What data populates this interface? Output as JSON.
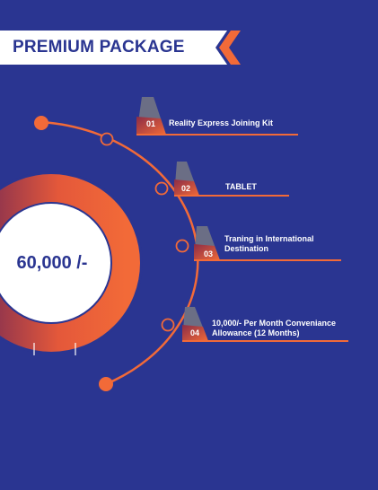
{
  "header": {
    "title": "PREMIUM PACKAGE"
  },
  "price": {
    "text": "60,000 /-"
  },
  "items": [
    {
      "number": "01",
      "label": "Reality Express Joining Kit"
    },
    {
      "number": "02",
      "label": "TABLET"
    },
    {
      "number": "03",
      "label_line1": "Traning in International",
      "label_line2": "Destination"
    },
    {
      "number": "04",
      "label_line1": "10,000/- Per Month Conveniance",
      "label_line2": "Allowance (12 Months)"
    }
  ],
  "colors": {
    "background": "#2a3591",
    "accent": "#f26a38",
    "accent_dark": "#8b2c47",
    "tab_gray": "#6b6e85",
    "white": "#ffffff"
  }
}
